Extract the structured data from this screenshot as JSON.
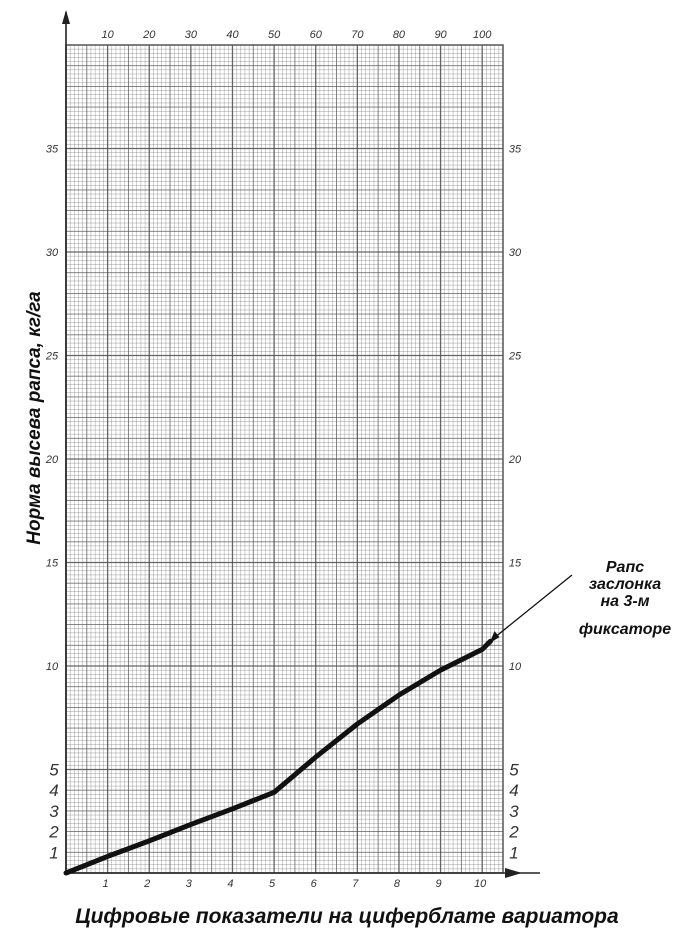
{
  "chart_data": {
    "type": "line",
    "xlabel": "Цифровые показатели на циферблате вариатора",
    "ylabel": "Норма высева рапса, кг/га",
    "xlim": [
      0,
      10.5
    ],
    "ylim": [
      0,
      40
    ],
    "top_axis": {
      "range": [
        0,
        105
      ],
      "tick_labels": [
        "10",
        "20",
        "30",
        "40",
        "50",
        "60",
        "70",
        "80",
        "90",
        "100"
      ]
    },
    "x_tick_labels": [
      "1",
      "2",
      "3",
      "4",
      "5",
      "6",
      "7",
      "8",
      "9",
      "10"
    ],
    "y_tick_labels_low": [
      "1",
      "2",
      "3",
      "4",
      "5"
    ],
    "y_tick_labels_high": [
      "10",
      "15",
      "20",
      "25",
      "30",
      "35"
    ],
    "grid": true,
    "series": [
      {
        "x": [
          0,
          1,
          2,
          3,
          4,
          5,
          6,
          7,
          8,
          9,
          10,
          10.2
        ],
        "y": [
          0,
          0.8,
          1.55,
          2.35,
          3.1,
          3.9,
          5.6,
          7.2,
          8.6,
          9.8,
          10.8,
          11.2
        ]
      }
    ],
    "annotations": [
      {
        "lines": [
          "Рапс",
          "заслонка",
          "на 3-м",
          "фиксаторе"
        ],
        "points_to": {
          "x": 10.2,
          "y": 11.2
        }
      }
    ],
    "colors": {
      "grid": "#555555",
      "line": "#111111",
      "background": "#ffffff"
    }
  }
}
